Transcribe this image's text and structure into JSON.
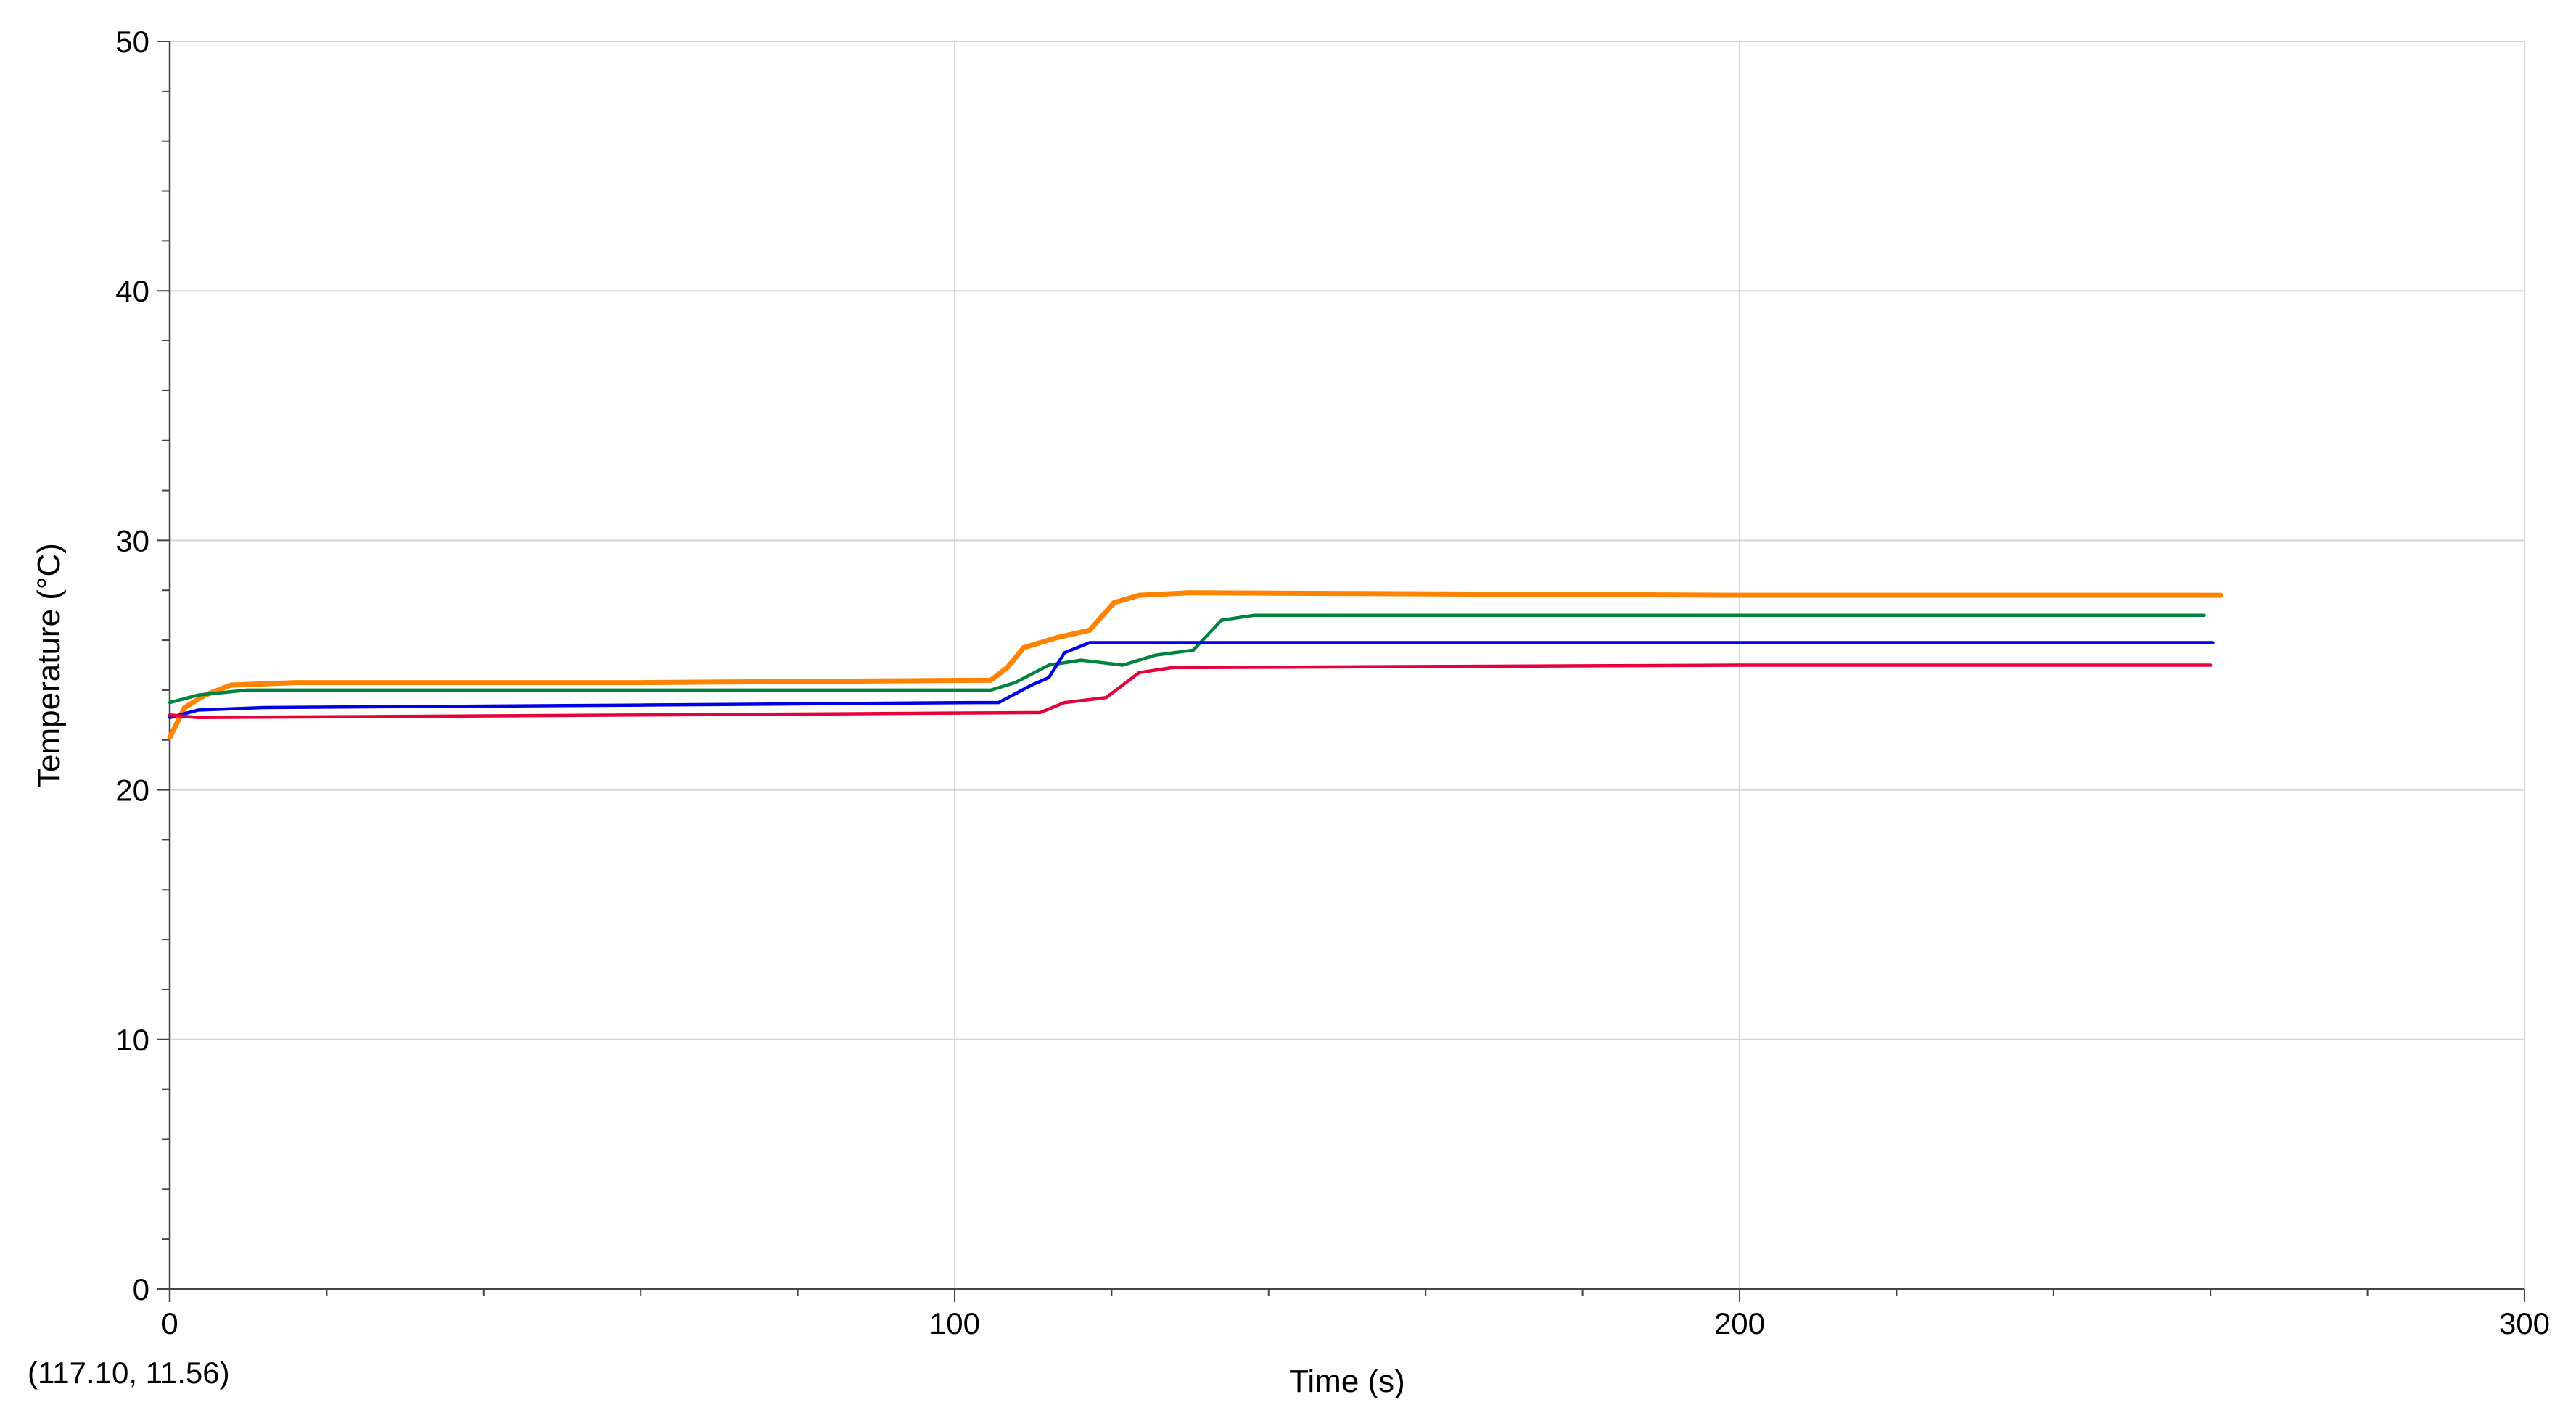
{
  "chart_data": {
    "type": "line",
    "title": "",
    "xlabel": "Time (s)",
    "ylabel": "Temperature (°C)",
    "xlim": [
      0,
      300
    ],
    "ylim": [
      0,
      50
    ],
    "x_ticks": [
      "0",
      "100",
      "200",
      "300"
    ],
    "y_ticks": [
      "0",
      "10",
      "20",
      "30",
      "40",
      "50"
    ],
    "grid": true,
    "legend": "none",
    "coordinate_readout": "(117.10, 11.56)",
    "series": [
      {
        "color": "#FF8200",
        "points": [
          [
            0,
            22.1
          ],
          [
            1.9,
            23.3
          ],
          [
            4.5,
            23.8
          ],
          [
            7.8,
            24.2
          ],
          [
            16,
            24.3
          ],
          [
            60,
            24.3
          ],
          [
            104.6,
            24.4
          ],
          [
            106.7,
            24.9
          ],
          [
            108.8,
            25.7
          ],
          [
            113,
            26.1
          ],
          [
            117.2,
            26.4
          ],
          [
            120.3,
            27.5
          ],
          [
            123.5,
            27.8
          ],
          [
            129.8,
            27.9
          ],
          [
            200,
            27.8
          ],
          [
            261.3,
            27.8
          ]
        ]
      },
      {
        "color": "#00843D",
        "points": [
          [
            0,
            23.5
          ],
          [
            3.6,
            23.8
          ],
          [
            9.9,
            24.0
          ],
          [
            60,
            24.0
          ],
          [
            104.6,
            24.0
          ],
          [
            107.7,
            24.3
          ],
          [
            112,
            25.0
          ],
          [
            116.1,
            25.2
          ],
          [
            121.4,
            25.0
          ],
          [
            125.6,
            25.4
          ],
          [
            130.4,
            25.6
          ],
          [
            134,
            26.8
          ],
          [
            138.2,
            27.0
          ],
          [
            200,
            27.0
          ],
          [
            259.2,
            27.0
          ]
        ]
      },
      {
        "color": "#0000E6",
        "points": [
          [
            0,
            22.9
          ],
          [
            3.6,
            23.2
          ],
          [
            12,
            23.3
          ],
          [
            60,
            23.4
          ],
          [
            102.5,
            23.5
          ],
          [
            105.6,
            23.5
          ],
          [
            109.8,
            24.2
          ],
          [
            112,
            24.5
          ],
          [
            114,
            25.5
          ],
          [
            117.2,
            25.9
          ],
          [
            121.4,
            25.9
          ],
          [
            200,
            25.9
          ],
          [
            260.3,
            25.9
          ]
        ]
      },
      {
        "color": "#E6003C",
        "points": [
          [
            0,
            23.0
          ],
          [
            3.6,
            22.9
          ],
          [
            60,
            23.0
          ],
          [
            110.9,
            23.1
          ],
          [
            114,
            23.5
          ],
          [
            119.3,
            23.7
          ],
          [
            123.5,
            24.7
          ],
          [
            127.7,
            24.9
          ],
          [
            200,
            25.0
          ],
          [
            260,
            25.0
          ]
        ]
      }
    ]
  }
}
